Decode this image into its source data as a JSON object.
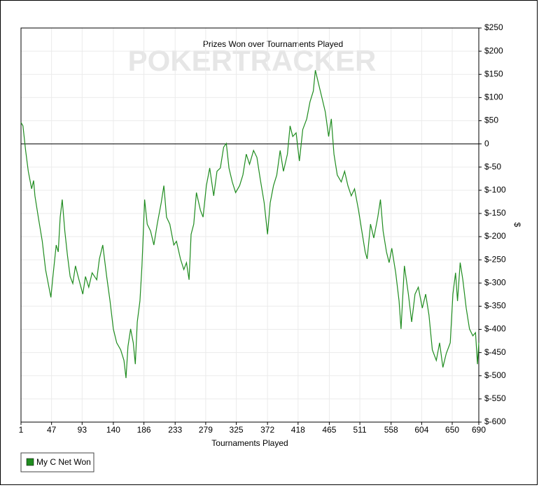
{
  "chart_data": {
    "type": "line",
    "title": "Prizes Won over Tournaments Played",
    "watermark": "POKERTRACKER",
    "x_label": "Tournaments Played",
    "y_label": "$",
    "xlim": [
      1,
      690
    ],
    "ylim": [
      -600,
      250
    ],
    "xticks": [
      1,
      47,
      93,
      140,
      186,
      233,
      279,
      325,
      372,
      418,
      465,
      511,
      558,
      604,
      650,
      690
    ],
    "yticks": [
      {
        "value": 250,
        "label": "$250"
      },
      {
        "value": 200,
        "label": "$200"
      },
      {
        "value": 150,
        "label": "$150"
      },
      {
        "value": 100,
        "label": "$100"
      },
      {
        "value": 50,
        "label": "$50"
      },
      0,
      {
        "value": -50,
        "label": "$-50"
      },
      {
        "value": -100,
        "label": "$-100"
      },
      {
        "value": -150,
        "label": "$-150"
      },
      {
        "value": -200,
        "label": "$-200"
      },
      {
        "value": -250,
        "label": "$-250"
      },
      {
        "value": -300,
        "label": "$-300"
      },
      {
        "value": -350,
        "label": "$-350"
      },
      {
        "value": -400,
        "label": "$-400"
      },
      {
        "value": -450,
        "label": "$-450"
      },
      {
        "value": -500,
        "label": "$-500"
      },
      {
        "value": -550,
        "label": "$-550"
      },
      {
        "value": -600,
        "label": "$-600"
      }
    ],
    "grid": true,
    "legend": "bottom-left",
    "x": [
      1,
      4,
      8,
      12,
      17,
      20,
      22,
      27,
      33,
      38,
      43,
      46,
      49,
      54,
      57,
      60,
      63,
      67,
      71,
      75,
      79,
      83,
      87,
      94,
      98,
      103,
      108,
      115,
      119,
      124,
      130,
      135,
      140,
      145,
      151,
      156,
      159,
      162,
      166,
      170,
      173,
      176,
      180,
      183,
      187,
      191,
      196,
      201,
      206,
      212,
      216,
      220,
      225,
      231,
      235,
      241,
      246,
      250,
      254,
      257,
      261,
      265,
      271,
      275,
      280,
      285,
      291,
      296,
      301,
      306,
      310,
      314,
      319,
      324,
      330,
      335,
      340,
      345,
      351,
      356,
      361,
      367,
      372,
      376,
      381,
      386,
      391,
      396,
      402,
      406,
      410,
      415,
      420,
      425,
      431,
      436,
      441,
      444,
      449,
      454,
      459,
      464,
      468,
      472,
      477,
      483,
      488,
      493,
      498,
      503,
      509,
      514,
      519,
      522,
      527,
      532,
      538,
      542,
      546,
      551,
      555,
      559,
      565,
      570,
      573,
      578,
      584,
      589,
      594,
      599,
      605,
      610,
      615,
      620,
      626,
      631,
      636,
      641,
      647,
      651,
      655,
      658,
      662,
      666,
      671,
      676,
      681,
      685,
      688,
      690
    ],
    "series": [
      {
        "name": "My C Net Won",
        "color": "#1f8c1f",
        "values": [
          46,
          39,
          -14,
          -59,
          -97,
          -79,
          -112,
          -158,
          -210,
          -271,
          -309,
          -331,
          -286,
          -218,
          -233,
          -158,
          -120,
          -188,
          -241,
          -286,
          -301,
          -263,
          -286,
          -324,
          -286,
          -309,
          -278,
          -293,
          -248,
          -218,
          -286,
          -339,
          -399,
          -429,
          -444,
          -467,
          -505,
          -437,
          -399,
          -429,
          -475,
          -384,
          -339,
          -263,
          -120,
          -173,
          -188,
          -218,
          -173,
          -127,
          -90,
          -158,
          -173,
          -218,
          -210,
          -248,
          -271,
          -256,
          -293,
          -195,
          -173,
          -105,
          -143,
          -158,
          -90,
          -52,
          -112,
          -59,
          -52,
          -7,
          1,
          -52,
          -82,
          -105,
          -90,
          -67,
          -22,
          -44,
          -14,
          -29,
          -75,
          -127,
          -195,
          -127,
          -90,
          -67,
          -14,
          -59,
          -22,
          39,
          16,
          24,
          -37,
          31,
          54,
          91,
          114,
          159,
          129,
          99,
          69,
          16,
          54,
          -22,
          -67,
          -82,
          -59,
          -90,
          -112,
          -97,
          -143,
          -188,
          -233,
          -248,
          -173,
          -203,
          -158,
          -120,
          -188,
          -233,
          -256,
          -225,
          -278,
          -339,
          -399,
          -263,
          -324,
          -384,
          -324,
          -309,
          -354,
          -324,
          -369,
          -444,
          -467,
          -429,
          -482,
          -452,
          -429,
          -324,
          -278,
          -339,
          -256,
          -293,
          -354,
          -399,
          -414,
          -407,
          -475,
          -429
        ]
      }
    ]
  }
}
